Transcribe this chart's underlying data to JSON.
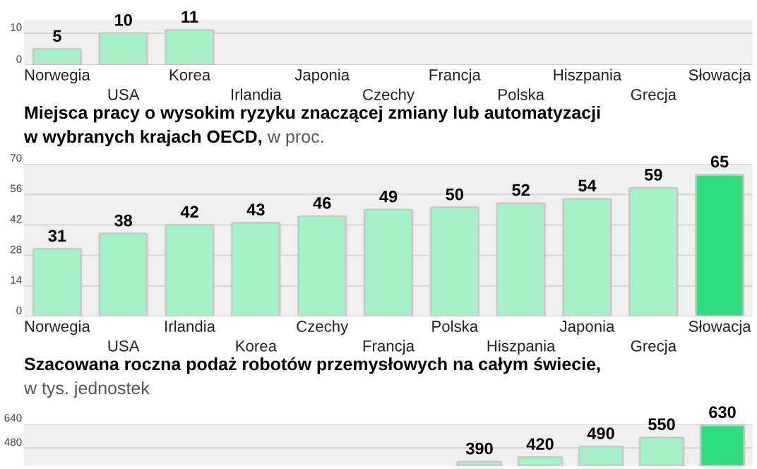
{
  "chart_data": [
    {
      "type": "bar",
      "categories": [
        "Norwegia",
        "USA",
        "Korea",
        "Irlandia",
        "Japonia",
        "Czechy",
        "Francja",
        "Polska",
        "Hiszpania",
        "Grecja",
        "Słowacja"
      ],
      "values": [
        5,
        10,
        11,
        null,
        null,
        null,
        null,
        null,
        null,
        null,
        null
      ],
      "colors": [
        "#a6f0c8",
        "#a6f0c8",
        "#a6f0c8",
        "#a6f0c8",
        "#a6f0c8",
        "#a6f0c8",
        "#a6f0c8",
        "#a6f0c8",
        "#a6f0c8",
        "#a6f0c8",
        "#2ede7c"
      ],
      "ylim": [
        0,
        14.2
      ],
      "yticks": [
        0,
        10
      ],
      "grid": "y",
      "data_labels": true
    },
    {
      "type": "bar",
      "title": "Miejsca pracy o wysokim ryzyku znaczącej zmiany lub automatyzacji\nw wybranych krajach OECD,",
      "subtitle": "w proc.",
      "categories": [
        "Norwegia",
        "USA",
        "Irlandia",
        "Korea",
        "Czechy",
        "Francja",
        "Polska",
        "Hiszpania",
        "Japonia",
        "Grecja",
        "Słowacja"
      ],
      "values": [
        31,
        38,
        42,
        43,
        46,
        49,
        50,
        52,
        54,
        59,
        65
      ],
      "colors": [
        "#a6f0c8",
        "#a6f0c8",
        "#a6f0c8",
        "#a6f0c8",
        "#a6f0c8",
        "#a6f0c8",
        "#a6f0c8",
        "#a6f0c8",
        "#a6f0c8",
        "#a6f0c8",
        "#2ede7c"
      ],
      "ylim": [
        0,
        70
      ],
      "yticks": [
        0,
        14,
        28,
        42,
        56,
        70
      ],
      "grid": "y",
      "data_labels": true
    },
    {
      "type": "bar",
      "title": "Szacowana roczna podaż robotów przemysłowych na całym świecie,",
      "subtitle": "w tys. jednostek",
      "categories": [
        null,
        null,
        null,
        null,
        null,
        null,
        null,
        null,
        null,
        null,
        null,
        null
      ],
      "values": [
        null,
        null,
        null,
        null,
        null,
        null,
        null,
        390,
        420,
        490,
        550,
        630
      ],
      "colors": [
        "#a6f0c8",
        "#a6f0c8",
        "#a6f0c8",
        "#a6f0c8",
        "#a6f0c8",
        "#a6f0c8",
        "#a6f0c8",
        "#a6f0c8",
        "#a6f0c8",
        "#a6f0c8",
        "#a6f0c8",
        "#2ede7c"
      ],
      "ylim": [
        360,
        640
      ],
      "yticks": [
        480,
        640
      ],
      "grid": "y",
      "data_labels": true
    }
  ]
}
